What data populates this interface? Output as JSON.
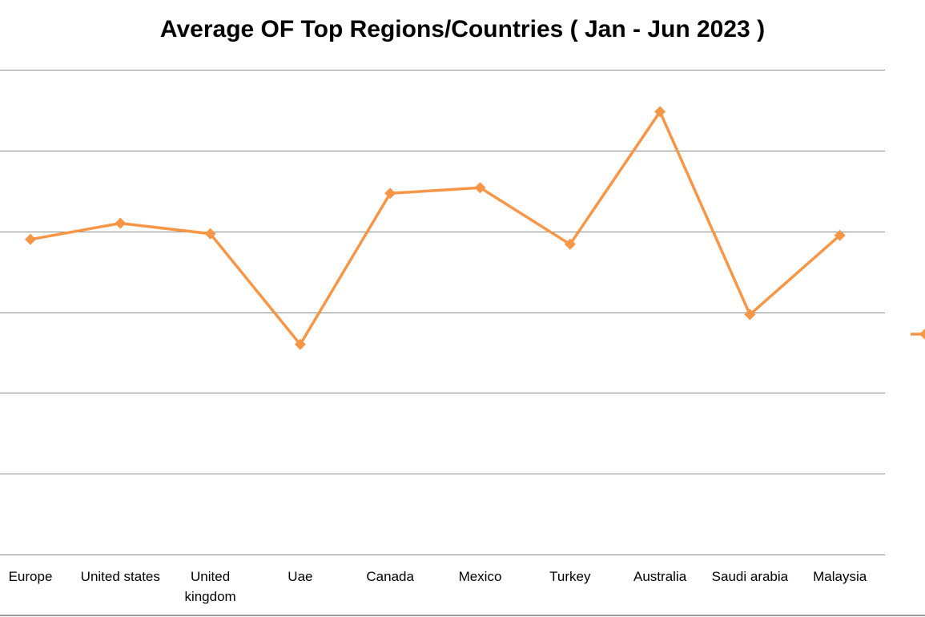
{
  "chart_data": {
    "type": "line",
    "title": "Average OF Top Regions/Countries ( Jan - Jun 2023 )",
    "categories": [
      "Europe",
      "United states",
      "United kingdom",
      "Uae",
      "Canada",
      "Mexico",
      "Turkey",
      "Australia",
      "Saudi arabia",
      "Malaysia"
    ],
    "category_lines": [
      [
        "Europe"
      ],
      [
        "United states"
      ],
      [
        "United",
        "kingdom"
      ],
      [
        "Uae"
      ],
      [
        "Canada"
      ],
      [
        "Mexico"
      ],
      [
        "Turkey"
      ],
      [
        "Australia"
      ],
      [
        "Saudi arabia"
      ],
      [
        "Malaysia"
      ]
    ],
    "series": [
      {
        "values": [
          3.9,
          4.1,
          3.97,
          2.6,
          4.47,
          4.54,
          3.84,
          5.48,
          2.97,
          3.95
        ],
        "color": "#F79646",
        "marker": "diamond"
      }
    ],
    "ylim": [
      0,
      6
    ],
    "gridlines": [
      0,
      1,
      2,
      3,
      4,
      5,
      6
    ],
    "grid": true,
    "y_tick_labels_visible": false,
    "legend": "right, cropped"
  }
}
